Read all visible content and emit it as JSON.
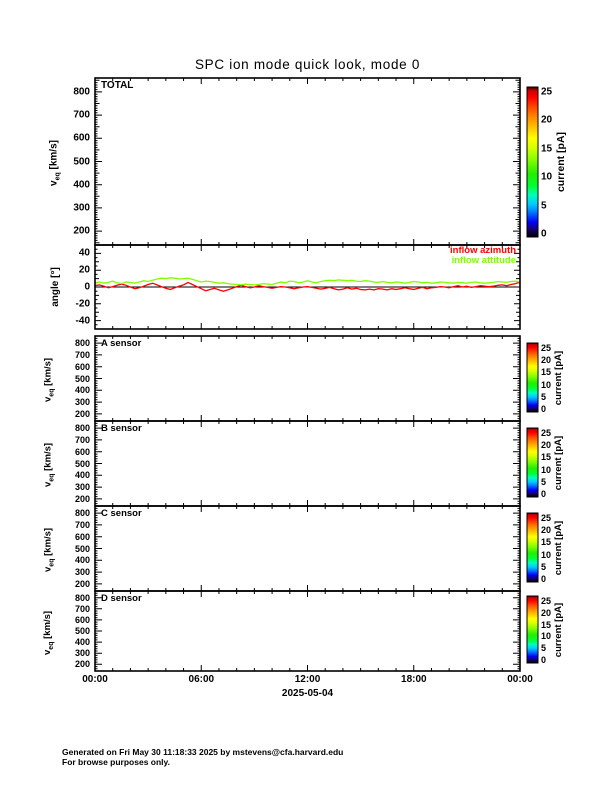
{
  "meta": {
    "title": "SPC ion mode quick look, mode 0"
  },
  "x_axis": {
    "tick_labels": [
      "00:00",
      "06:00",
      "12:00",
      "18:00",
      "00:00"
    ],
    "tick_hours": [
      0,
      6,
      12,
      18,
      24
    ],
    "minor_step_hours": 1,
    "range_hours": [
      0,
      24
    ],
    "date_label": "2025-05-04"
  },
  "velocity_axis": {
    "label_main": "v",
    "label_sub": "eq",
    "label_unit": " [km/s]",
    "ticks": [
      200,
      300,
      400,
      500,
      600,
      700,
      800
    ],
    "lim": [
      140,
      860
    ]
  },
  "angle_axis": {
    "label": "angle [°]",
    "ticks": [
      -40,
      -20,
      0,
      20,
      40
    ],
    "lim": [
      -50,
      50
    ]
  },
  "colorbar": {
    "label": "current [pA]",
    "ticks": [
      0,
      5,
      10,
      15,
      20,
      25
    ],
    "lim": [
      0,
      25
    ],
    "gradient_stops": [
      {
        "o": 0.0,
        "c": "#000000"
      },
      {
        "o": 0.05,
        "c": "#16006c"
      },
      {
        "o": 0.1,
        "c": "#0000ff"
      },
      {
        "o": 0.17,
        "c": "#0080ff"
      },
      {
        "o": 0.22,
        "c": "#00ccff"
      },
      {
        "o": 0.28,
        "c": "#00ffbb"
      },
      {
        "o": 0.34,
        "c": "#00ff33"
      },
      {
        "o": 0.42,
        "c": "#22ee00"
      },
      {
        "o": 0.52,
        "c": "#88ff00"
      },
      {
        "o": 0.6,
        "c": "#ddff00"
      },
      {
        "o": 0.66,
        "c": "#ffff00"
      },
      {
        "o": 0.74,
        "c": "#ffbb00"
      },
      {
        "o": 0.8,
        "c": "#ff8800"
      },
      {
        "o": 0.87,
        "c": "#ff4400"
      },
      {
        "o": 0.93,
        "c": "#ff0000"
      },
      {
        "o": 0.975,
        "c": "#cc0000"
      },
      {
        "o": 1.0,
        "c": "#2a0000"
      }
    ]
  },
  "footer": {
    "line1": "Generated on Fri May 30 11:18:33 2025 by mstevens@cfa.harvard.edu",
    "line2": "For browse purposes only."
  },
  "chart_data": [
    {
      "panel": "total",
      "label": "TOTAL",
      "type": "heatmap",
      "ylabel": "v_eq [km/s]",
      "ylim": [
        140,
        860
      ],
      "colorbar_label": "current [pA]",
      "colorbar_lim": [
        0,
        25
      ],
      "values": []
    },
    {
      "panel": "angle",
      "label": "",
      "type": "line",
      "ylabel": "angle [deg]",
      "ylim": [
        -50,
        50
      ],
      "x_start_hours": 0,
      "x_step_hours": 0.25,
      "series": [
        {
          "name": "inflow azimuth",
          "color": "#ff0000",
          "y": [
            1.5,
            2.5,
            1,
            -1,
            0.5,
            2,
            3.5,
            2,
            0,
            -2,
            -1,
            1,
            3,
            4.5,
            2.5,
            0.5,
            -1.5,
            -3,
            -1,
            1,
            2.5,
            5.5,
            3,
            0.5,
            -2,
            -4.5,
            -3,
            -1.5,
            -3.5,
            -5,
            -3.5,
            -1.5,
            0.5,
            2,
            0.5,
            -1,
            0,
            1.5,
            0.5,
            -0.5,
            -1.5,
            -0.5,
            0.5,
            0,
            -1,
            -2,
            -1,
            0,
            0.5,
            -0.5,
            -1.5,
            -2.5,
            -1.5,
            -0.5,
            -2,
            -3.5,
            -2.5,
            -1,
            -2.5,
            -1.5,
            -3,
            -3.5,
            -2.5,
            -3.5,
            -2,
            -2.5,
            -3.5,
            -2,
            -3,
            -2,
            -1,
            -2,
            -3,
            -1.5,
            -0.5,
            -2,
            -1,
            -0.5,
            0.5,
            0,
            -1,
            0.5,
            1.5,
            0,
            1,
            -0.5,
            0.5,
            1.5,
            1,
            0.5,
            1,
            2,
            2.5,
            1.5,
            3,
            4,
            6
          ]
        },
        {
          "name": "inflow attitude",
          "color": "#80ff00",
          "y": [
            5,
            6,
            4.5,
            5.5,
            7,
            5,
            4,
            6,
            5.5,
            4.5,
            6,
            7.5,
            6.5,
            8,
            9.5,
            10.5,
            10,
            11,
            10.5,
            9.5,
            10,
            10.5,
            9,
            7.5,
            6,
            7,
            6.5,
            5.5,
            4.5,
            5,
            4,
            3.5,
            3,
            2.5,
            3.5,
            3,
            2.5,
            3,
            4,
            3.5,
            3,
            4.5,
            6,
            5,
            7,
            6.5,
            5,
            6,
            7.5,
            6,
            5,
            6.5,
            7.5,
            8,
            7.5,
            8.5,
            8,
            7.5,
            8,
            7,
            6.5,
            7.5,
            7,
            6,
            5.5,
            6.5,
            5.5,
            5,
            6,
            5.5,
            4.5,
            5.5,
            6.5,
            6,
            5,
            5.5,
            4.5,
            5,
            6,
            5.5,
            5,
            4.5,
            5.5,
            5,
            4.5,
            5.5,
            6,
            5,
            4.5,
            5,
            5.5,
            6.5,
            6,
            5.5,
            6.5,
            7,
            6
          ]
        }
      ]
    },
    {
      "panel": "a",
      "label": "A sensor",
      "type": "heatmap",
      "ylabel": "v_eq [km/s]",
      "ylim": [
        140,
        860
      ],
      "colorbar_label": "current [pA]",
      "colorbar_lim": [
        0,
        25
      ],
      "values": []
    },
    {
      "panel": "b",
      "label": "B sensor",
      "type": "heatmap",
      "ylabel": "v_eq [km/s]",
      "ylim": [
        140,
        860
      ],
      "colorbar_label": "current [pA]",
      "colorbar_lim": [
        0,
        25
      ],
      "values": []
    },
    {
      "panel": "c",
      "label": "C sensor",
      "type": "heatmap",
      "ylabel": "v_eq [km/s]",
      "ylim": [
        140,
        860
      ],
      "colorbar_label": "current [pA]",
      "colorbar_lim": [
        0,
        25
      ],
      "values": []
    },
    {
      "panel": "d",
      "label": "D sensor",
      "type": "heatmap",
      "ylabel": "v_eq [km/s]",
      "ylim": [
        140,
        860
      ],
      "colorbar_label": "current [pA]",
      "colorbar_lim": [
        0,
        25
      ],
      "values": []
    }
  ]
}
